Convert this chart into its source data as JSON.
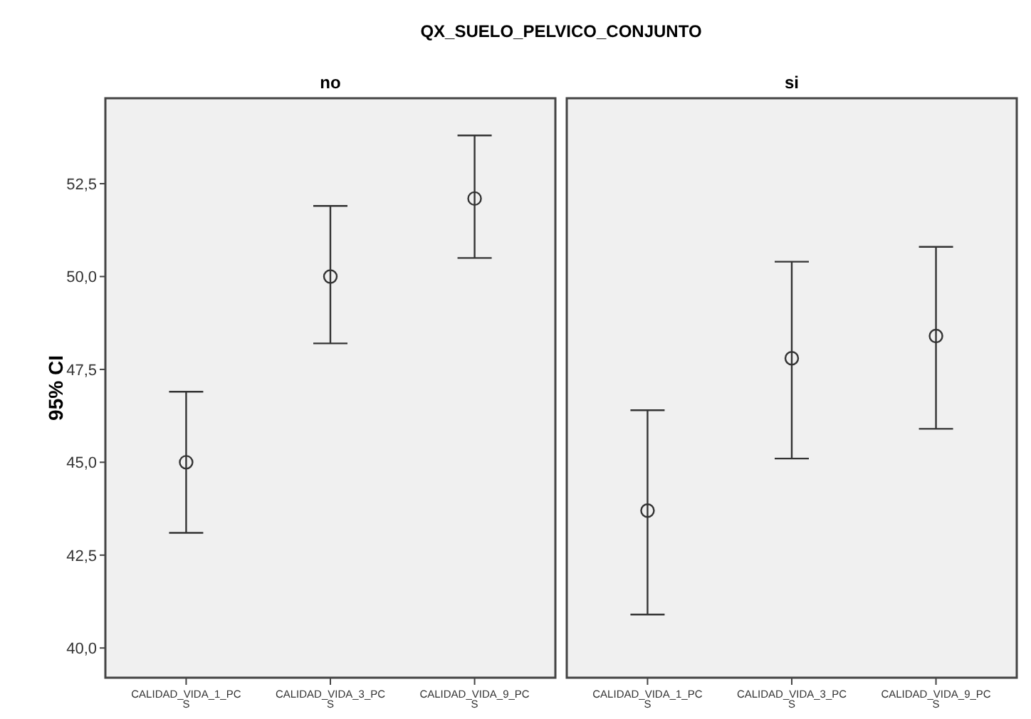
{
  "chart_data": [
    {
      "type": "scatter",
      "title": "QX_SUELO_PELVICO_CONJUNTO",
      "subtitle": "no",
      "ylabel": "95% CI",
      "categories": [
        "CALIDAD_VIDA_1_PCS",
        "CALIDAD_VIDA_3_PCS",
        "CALIDAD_VIDA_9_PCS"
      ],
      "values": [
        45.0,
        50.0,
        52.1
      ],
      "errors": [
        [
          43.1,
          46.9
        ],
        [
          48.2,
          51.9
        ],
        [
          50.5,
          53.8
        ]
      ],
      "color": "#333333",
      "marker": "circle",
      "ylim": [
        39.2,
        54.8
      ],
      "yticks": [
        {
          "value": 40,
          "label": "40,0"
        },
        {
          "value": 42.5,
          "label": "42,5"
        },
        {
          "value": 45,
          "label": "45,0"
        },
        {
          "value": 47.5,
          "label": "47,5"
        },
        {
          "value": 50,
          "label": "50,0"
        },
        {
          "value": 52.5,
          "label": "52,5"
        }
      ],
      "grid": false
    },
    {
      "type": "scatter",
      "subtitle": "si",
      "categories": [
        "CALIDAD_VIDA_1_PCS",
        "CALIDAD_VIDA_3_PCS",
        "CALIDAD_VIDA_9_PCS"
      ],
      "values": [
        43.7,
        47.8,
        48.4
      ],
      "errors": [
        [
          40.9,
          46.4
        ],
        [
          45.1,
          50.4
        ],
        [
          45.9,
          50.8
        ]
      ],
      "color": "#333333",
      "marker": "circle",
      "ylim": [
        39.2,
        54.8
      ],
      "tick_labels": "x",
      "grid": false
    }
  ]
}
